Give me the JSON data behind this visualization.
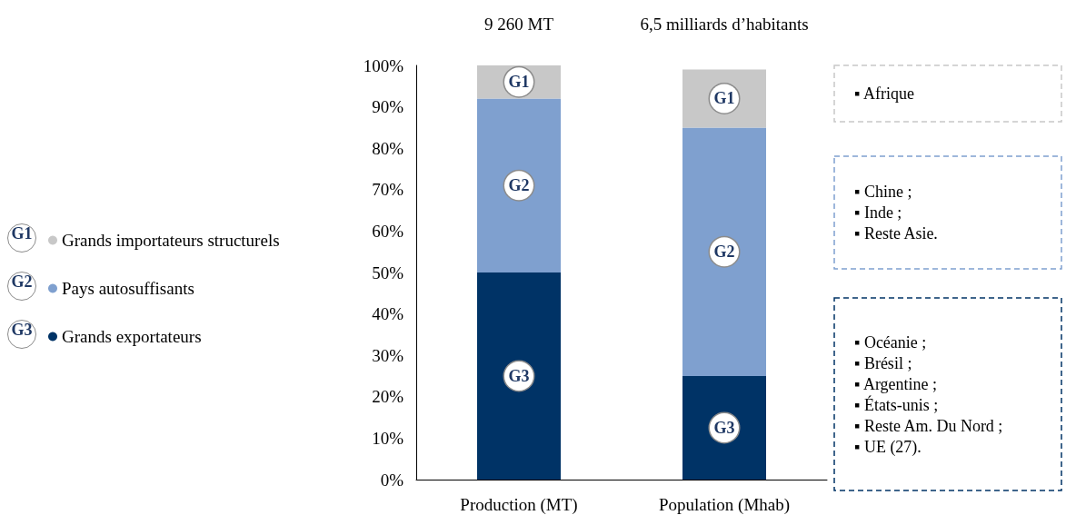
{
  "chart_data": {
    "type": "bar",
    "stacked": true,
    "categories": [
      "Production (MT)",
      "Population (Mhab)"
    ],
    "series": [
      {
        "name": "Grands exportateurs",
        "color": "#003366",
        "values": [
          50,
          25
        ],
        "value_labels": [
          "G3",
          "G3"
        ]
      },
      {
        "name": "Pays autosuffisants",
        "color": "#7fa0cf",
        "values": [
          42,
          60
        ],
        "value_labels": [
          "G2",
          "G2"
        ]
      },
      {
        "name": "Grands importateurs structurels",
        "color": "#c8c8c8",
        "values": [
          8,
          14
        ],
        "value_labels": [
          "G1",
          "G1"
        ]
      }
    ],
    "ylim": [
      0,
      100
    ],
    "yticks": [
      {
        "value": 0,
        "label": "0%"
      },
      {
        "value": 10,
        "label": "10%"
      },
      {
        "value": 20,
        "label": "20%"
      },
      {
        "value": 30,
        "label": "30%"
      },
      {
        "value": 40,
        "label": "40%"
      },
      {
        "value": 50,
        "label": "50%"
      },
      {
        "value": 60,
        "label": "60%"
      },
      {
        "value": 70,
        "label": "70%"
      },
      {
        "value": 80,
        "label": "80%"
      },
      {
        "value": 90,
        "label": "90%"
      },
      {
        "value": 100,
        "label": "100%"
      }
    ],
    "grid": false,
    "legend": "left",
    "annotations": [
      "9 260 MT",
      "6,5 milliards d’habitants",
      "▪ Afrique",
      "▪ Chine ;\n▪ Inde ;\n▪ Reste Asie.",
      "▪ Océanie ;\n▪ Brésil ;\n▪ Argentine ;\n▪ États-unis ;\n▪ Reste Am. Du Nord ;\n▪ UE (27)."
    ]
  }
}
